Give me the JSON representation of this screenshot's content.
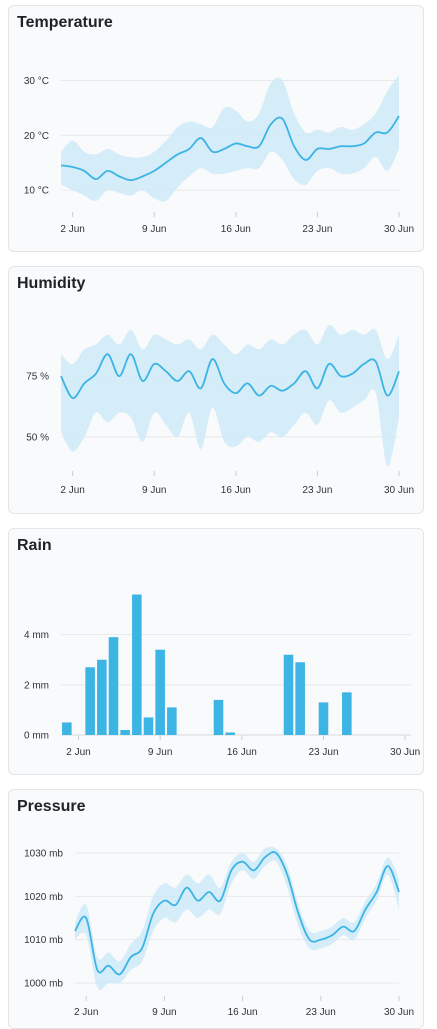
{
  "chart_data": [
    {
      "id": "temperature",
      "type": "area",
      "title": "Temperature",
      "x_ticks": [
        "2 Jun",
        "9 Jun",
        "16 Jun",
        "23 Jun",
        "30 Jun"
      ],
      "y_ticks": [
        "10 °C",
        "20 °C",
        "30 °C"
      ],
      "ylim": [
        6,
        33
      ],
      "xlim": [
        1,
        30
      ],
      "color": "#3cb4e4",
      "band_color": "#cfe9f8",
      "grid": true,
      "x": [
        1,
        2,
        3,
        4,
        5,
        6,
        7,
        8,
        9,
        10,
        11,
        12,
        13,
        14,
        15,
        16,
        17,
        18,
        19,
        20,
        21,
        22,
        23,
        24,
        25,
        26,
        27,
        28,
        29,
        30
      ],
      "series": [
        {
          "values": [
            14.5,
            14.2,
            13.5,
            12.0,
            13.5,
            12.5,
            11.8,
            12.5,
            13.5,
            15.0,
            16.5,
            17.5,
            19.5,
            17.0,
            17.5,
            18.5,
            18.0,
            18.0,
            22.0,
            23.0,
            18.0,
            15.5,
            17.5,
            17.5,
            18.0,
            18.0,
            18.5,
            20.5,
            20.5,
            23.5
          ],
          "low": [
            11.0,
            10.0,
            9.0,
            8.0,
            10.0,
            9.5,
            9.0,
            10.0,
            8.5,
            8.0,
            10.5,
            12.5,
            14.0,
            13.0,
            13.0,
            13.5,
            14.0,
            14.0,
            17.0,
            15.5,
            12.0,
            11.0,
            13.5,
            14.0,
            13.0,
            13.0,
            14.0,
            16.0,
            13.5,
            17.5
          ],
          "high": [
            17.0,
            19.0,
            17.0,
            16.5,
            17.5,
            16.5,
            16.0,
            16.0,
            17.0,
            19.0,
            21.5,
            22.5,
            22.0,
            21.5,
            25.0,
            24.5,
            22.5,
            24.0,
            29.5,
            30.0,
            24.0,
            20.5,
            21.0,
            20.5,
            21.5,
            21.0,
            22.0,
            24.0,
            28.0,
            31.0
          ]
        }
      ]
    },
    {
      "id": "humidity",
      "type": "area",
      "title": "Humidity",
      "x_ticks": [
        "2 Jun",
        "9 Jun",
        "16 Jun",
        "23 Jun",
        "30 Jun"
      ],
      "y_ticks": [
        "50 %",
        "75 %"
      ],
      "ylim": [
        36,
        96
      ],
      "xlim": [
        1,
        30
      ],
      "color": "#3cb4e4",
      "band_color": "#cfe9f8",
      "grid": true,
      "x": [
        1,
        2,
        3,
        4,
        5,
        6,
        7,
        8,
        9,
        10,
        11,
        12,
        13,
        14,
        15,
        16,
        17,
        18,
        19,
        20,
        21,
        22,
        23,
        24,
        25,
        26,
        27,
        28,
        29,
        30
      ],
      "series": [
        {
          "values": [
            75,
            66,
            72,
            76,
            84,
            75,
            84,
            73,
            80,
            77,
            73,
            77,
            70,
            82,
            72,
            68,
            72,
            67,
            71,
            69,
            72,
            77,
            70,
            80,
            75,
            76,
            80,
            81,
            67,
            77
          ],
          "low": [
            52,
            44,
            50,
            60,
            56,
            60,
            58,
            48,
            60,
            55,
            50,
            60,
            45,
            62,
            48,
            46,
            50,
            48,
            52,
            50,
            55,
            60,
            55,
            65,
            60,
            62,
            65,
            68,
            38,
            58
          ],
          "high": [
            84,
            80,
            86,
            88,
            92,
            88,
            94,
            86,
            92,
            90,
            88,
            90,
            86,
            92,
            88,
            84,
            88,
            86,
            90,
            88,
            92,
            94,
            88,
            96,
            92,
            94,
            92,
            94,
            82,
            92
          ]
        }
      ]
    },
    {
      "id": "rain",
      "type": "bar",
      "title": "Rain",
      "x_ticks": [
        "2 Jun",
        "9 Jun",
        "16 Jun",
        "23 Jun",
        "30 Jun"
      ],
      "y_ticks": [
        "0 mm",
        "2 mm",
        "4 mm"
      ],
      "ylim": [
        0,
        5.9
      ],
      "xlim": [
        0.5,
        30.5
      ],
      "color": "#3cb4e4",
      "grid": true,
      "x": [
        1,
        2,
        3,
        4,
        5,
        6,
        7,
        8,
        9,
        10,
        11,
        12,
        13,
        14,
        15,
        16,
        17,
        18,
        19,
        20,
        21,
        22,
        23,
        24,
        25,
        26,
        27,
        28,
        29,
        30
      ],
      "series": [
        {
          "values": [
            0.5,
            0,
            2.7,
            3.0,
            3.9,
            0.2,
            5.6,
            0.7,
            3.4,
            1.1,
            0,
            0,
            0,
            1.4,
            0.1,
            0,
            0,
            0,
            0,
            3.2,
            2.9,
            0,
            1.3,
            0,
            1.7,
            0,
            0,
            0,
            0,
            0
          ]
        }
      ]
    },
    {
      "id": "pressure",
      "type": "area",
      "title": "Pressure",
      "x_ticks": [
        "2 Jun",
        "9 Jun",
        "16 Jun",
        "23 Jun",
        "30 Jun"
      ],
      "y_ticks": [
        "1000 mb",
        "1010 mb",
        "1020 mb",
        "1030 mb"
      ],
      "ylim": [
        997,
        1033
      ],
      "xlim": [
        1,
        30
      ],
      "color": "#3cb4e4",
      "band_color": "#cfe9f8",
      "grid": true,
      "x": [
        1,
        2,
        3,
        4,
        5,
        6,
        7,
        8,
        9,
        10,
        11,
        12,
        13,
        14,
        15,
        16,
        17,
        18,
        19,
        20,
        21,
        22,
        23,
        24,
        25,
        26,
        27,
        28,
        29,
        30
      ],
      "series": [
        {
          "values": [
            1012,
            1015,
            1003,
            1004,
            1002,
            1006,
            1008,
            1016,
            1019,
            1018,
            1022,
            1019,
            1021,
            1019,
            1026,
            1028,
            1026,
            1029,
            1030,
            1025,
            1016,
            1010,
            1010,
            1011,
            1013,
            1012,
            1017,
            1021,
            1027,
            1021
          ],
          "low": [
            1010,
            1011,
            999,
            1000,
            1000,
            1003,
            1005,
            1012,
            1015,
            1014,
            1017,
            1015,
            1017,
            1016,
            1023,
            1026,
            1024,
            1027,
            1028,
            1022,
            1013,
            1008,
            1008,
            1009,
            1011,
            1010,
            1015,
            1019,
            1025,
            1017
          ],
          "high": [
            1014,
            1018,
            1006,
            1007,
            1005,
            1009,
            1012,
            1020,
            1023,
            1022,
            1025,
            1023,
            1025,
            1022,
            1028,
            1030,
            1028,
            1031,
            1031,
            1027,
            1018,
            1012,
            1012,
            1013,
            1015,
            1014,
            1019,
            1023,
            1029,
            1024
          ]
        }
      ]
    }
  ]
}
